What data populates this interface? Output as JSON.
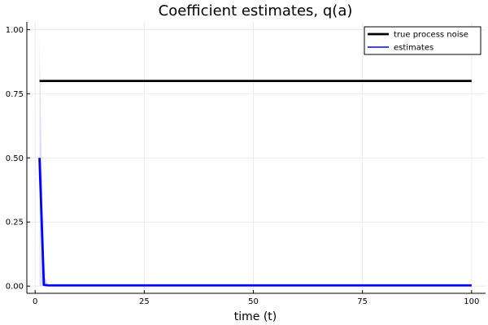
{
  "chart_data": {
    "type": "line",
    "title": "Coefficient estimates, q(a)",
    "xlabel": "time (t)",
    "ylabel": "",
    "xlim": [
      -1.9,
      103.2
    ],
    "ylim": [
      -0.028,
      1.03
    ],
    "xticks": [
      0,
      25,
      50,
      75,
      100
    ],
    "yticks": [
      0.0,
      0.25,
      0.5,
      0.75,
      1.0
    ],
    "xtick_labels": [
      "0",
      "25",
      "50",
      "75",
      "100"
    ],
    "ytick_labels": [
      "0.00",
      "0.25",
      "0.50",
      "0.75",
      "1.00"
    ],
    "grid": true,
    "legend_position": "top-right",
    "series": [
      {
        "name": "true process noise",
        "color": "#000000",
        "x": [
          1,
          100
        ],
        "y": [
          0.8,
          0.8
        ]
      },
      {
        "name": "estimates",
        "color": "#0000ff",
        "band_color": "#c8c8f8",
        "x": [
          1,
          2,
          3,
          100
        ],
        "y": [
          0.5,
          0.005,
          0.003,
          0.003
        ],
        "lower": [
          0.0,
          0.0,
          0.0,
          0.0
        ],
        "upper": [
          0.97,
          0.04,
          0.006,
          0.006
        ]
      }
    ]
  }
}
